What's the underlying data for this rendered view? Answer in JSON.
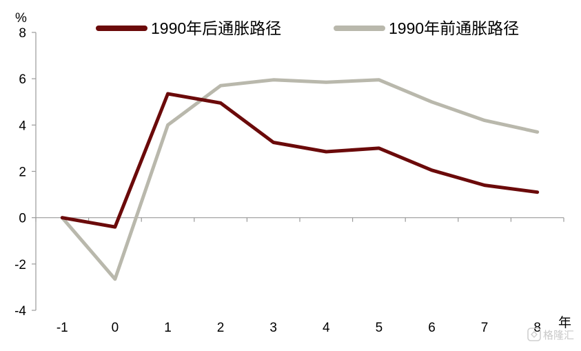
{
  "chart_data": {
    "type": "line",
    "title": "",
    "xlabel": "年",
    "ylabel": "%",
    "categories": [
      "-1",
      "0",
      "1",
      "2",
      "3",
      "4",
      "5",
      "6",
      "7",
      "8"
    ],
    "x": [
      -1,
      0,
      1,
      2,
      3,
      4,
      5,
      6,
      7,
      8
    ],
    "xlim": [
      -1.5,
      8.5
    ],
    "ylim": [
      -4,
      8
    ],
    "yticks": [
      -4,
      -2,
      0,
      2,
      4,
      6,
      8
    ],
    "grid": false,
    "legend_position": "top",
    "series": [
      {
        "name": "1990年后通胀路径",
        "color": "#6b0a0a",
        "values": [
          0.0,
          -0.4,
          5.35,
          4.95,
          3.25,
          2.85,
          3.0,
          2.05,
          1.4,
          1.1
        ]
      },
      {
        "name": "1990年前通胀路径",
        "color": "#b9b8ac",
        "values": [
          0.0,
          -2.65,
          4.0,
          5.7,
          5.95,
          5.85,
          5.95,
          5.0,
          4.2,
          3.7
        ]
      }
    ]
  },
  "watermark": {
    "text": "格隆汇"
  }
}
